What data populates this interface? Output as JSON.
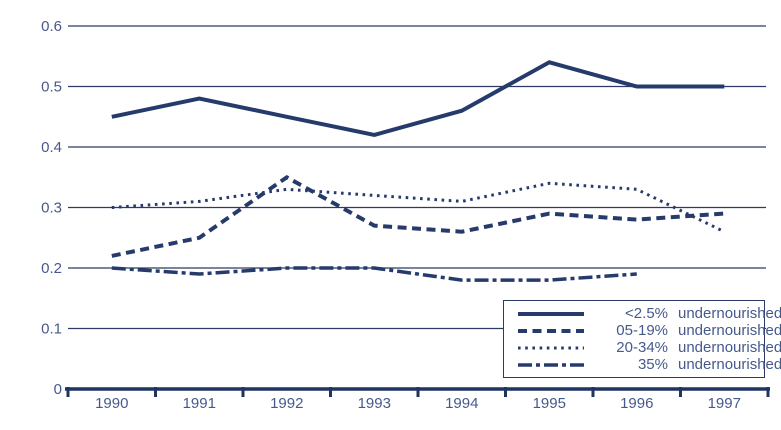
{
  "colors": {
    "line": "#263b6b",
    "grid": "#2b3a66",
    "axis": "#1f3460",
    "tick_label": "#47598c",
    "background": "#ffffff"
  },
  "legend": {
    "entries": [
      {
        "pct": "<2.5%",
        "label": "undernourished",
        "style": "solid"
      },
      {
        "pct": "05-19%",
        "label": "undernourished",
        "style": "dashed"
      },
      {
        "pct": "20-34%",
        "label": "undernourished",
        "style": "dotted"
      },
      {
        "pct": "35%",
        "label": "undernourished",
        "style": "dashdot"
      }
    ]
  },
  "chart_data": {
    "type": "line",
    "title": "",
    "xlabel": "",
    "ylabel": "",
    "categories": [
      "1990",
      "1991",
      "1992",
      "1993",
      "1994",
      "1995",
      "1996",
      "1997"
    ],
    "ylim": [
      0,
      0.6
    ],
    "yticks": [
      0.6,
      0.5,
      0.4,
      0.3,
      0.2,
      0.1,
      0
    ],
    "ytick_labels": [
      "0.6",
      "0.5",
      "0.4",
      "0.3",
      "0.2",
      "0.1",
      "0"
    ],
    "grid": "horizontal",
    "legend_position": "bottom-right-inside",
    "series": [
      {
        "name": "<2.5% undernourished",
        "style": "solid",
        "values": [
          0.45,
          0.48,
          0.45,
          0.42,
          0.46,
          0.54,
          0.5,
          0.5
        ]
      },
      {
        "name": "05-19% undernourished",
        "style": "dashed",
        "values": [
          0.22,
          0.25,
          0.35,
          0.27,
          0.26,
          0.29,
          0.28,
          0.29
        ]
      },
      {
        "name": "20-34% undernourished",
        "style": "dotted",
        "values": [
          0.3,
          0.31,
          0.33,
          0.32,
          0.31,
          0.34,
          0.33,
          0.26
        ]
      },
      {
        "name": "35% undernourished",
        "style": "dashdot",
        "values": [
          0.2,
          0.19,
          0.2,
          0.2,
          0.18,
          0.18,
          0.19,
          null
        ]
      }
    ]
  }
}
